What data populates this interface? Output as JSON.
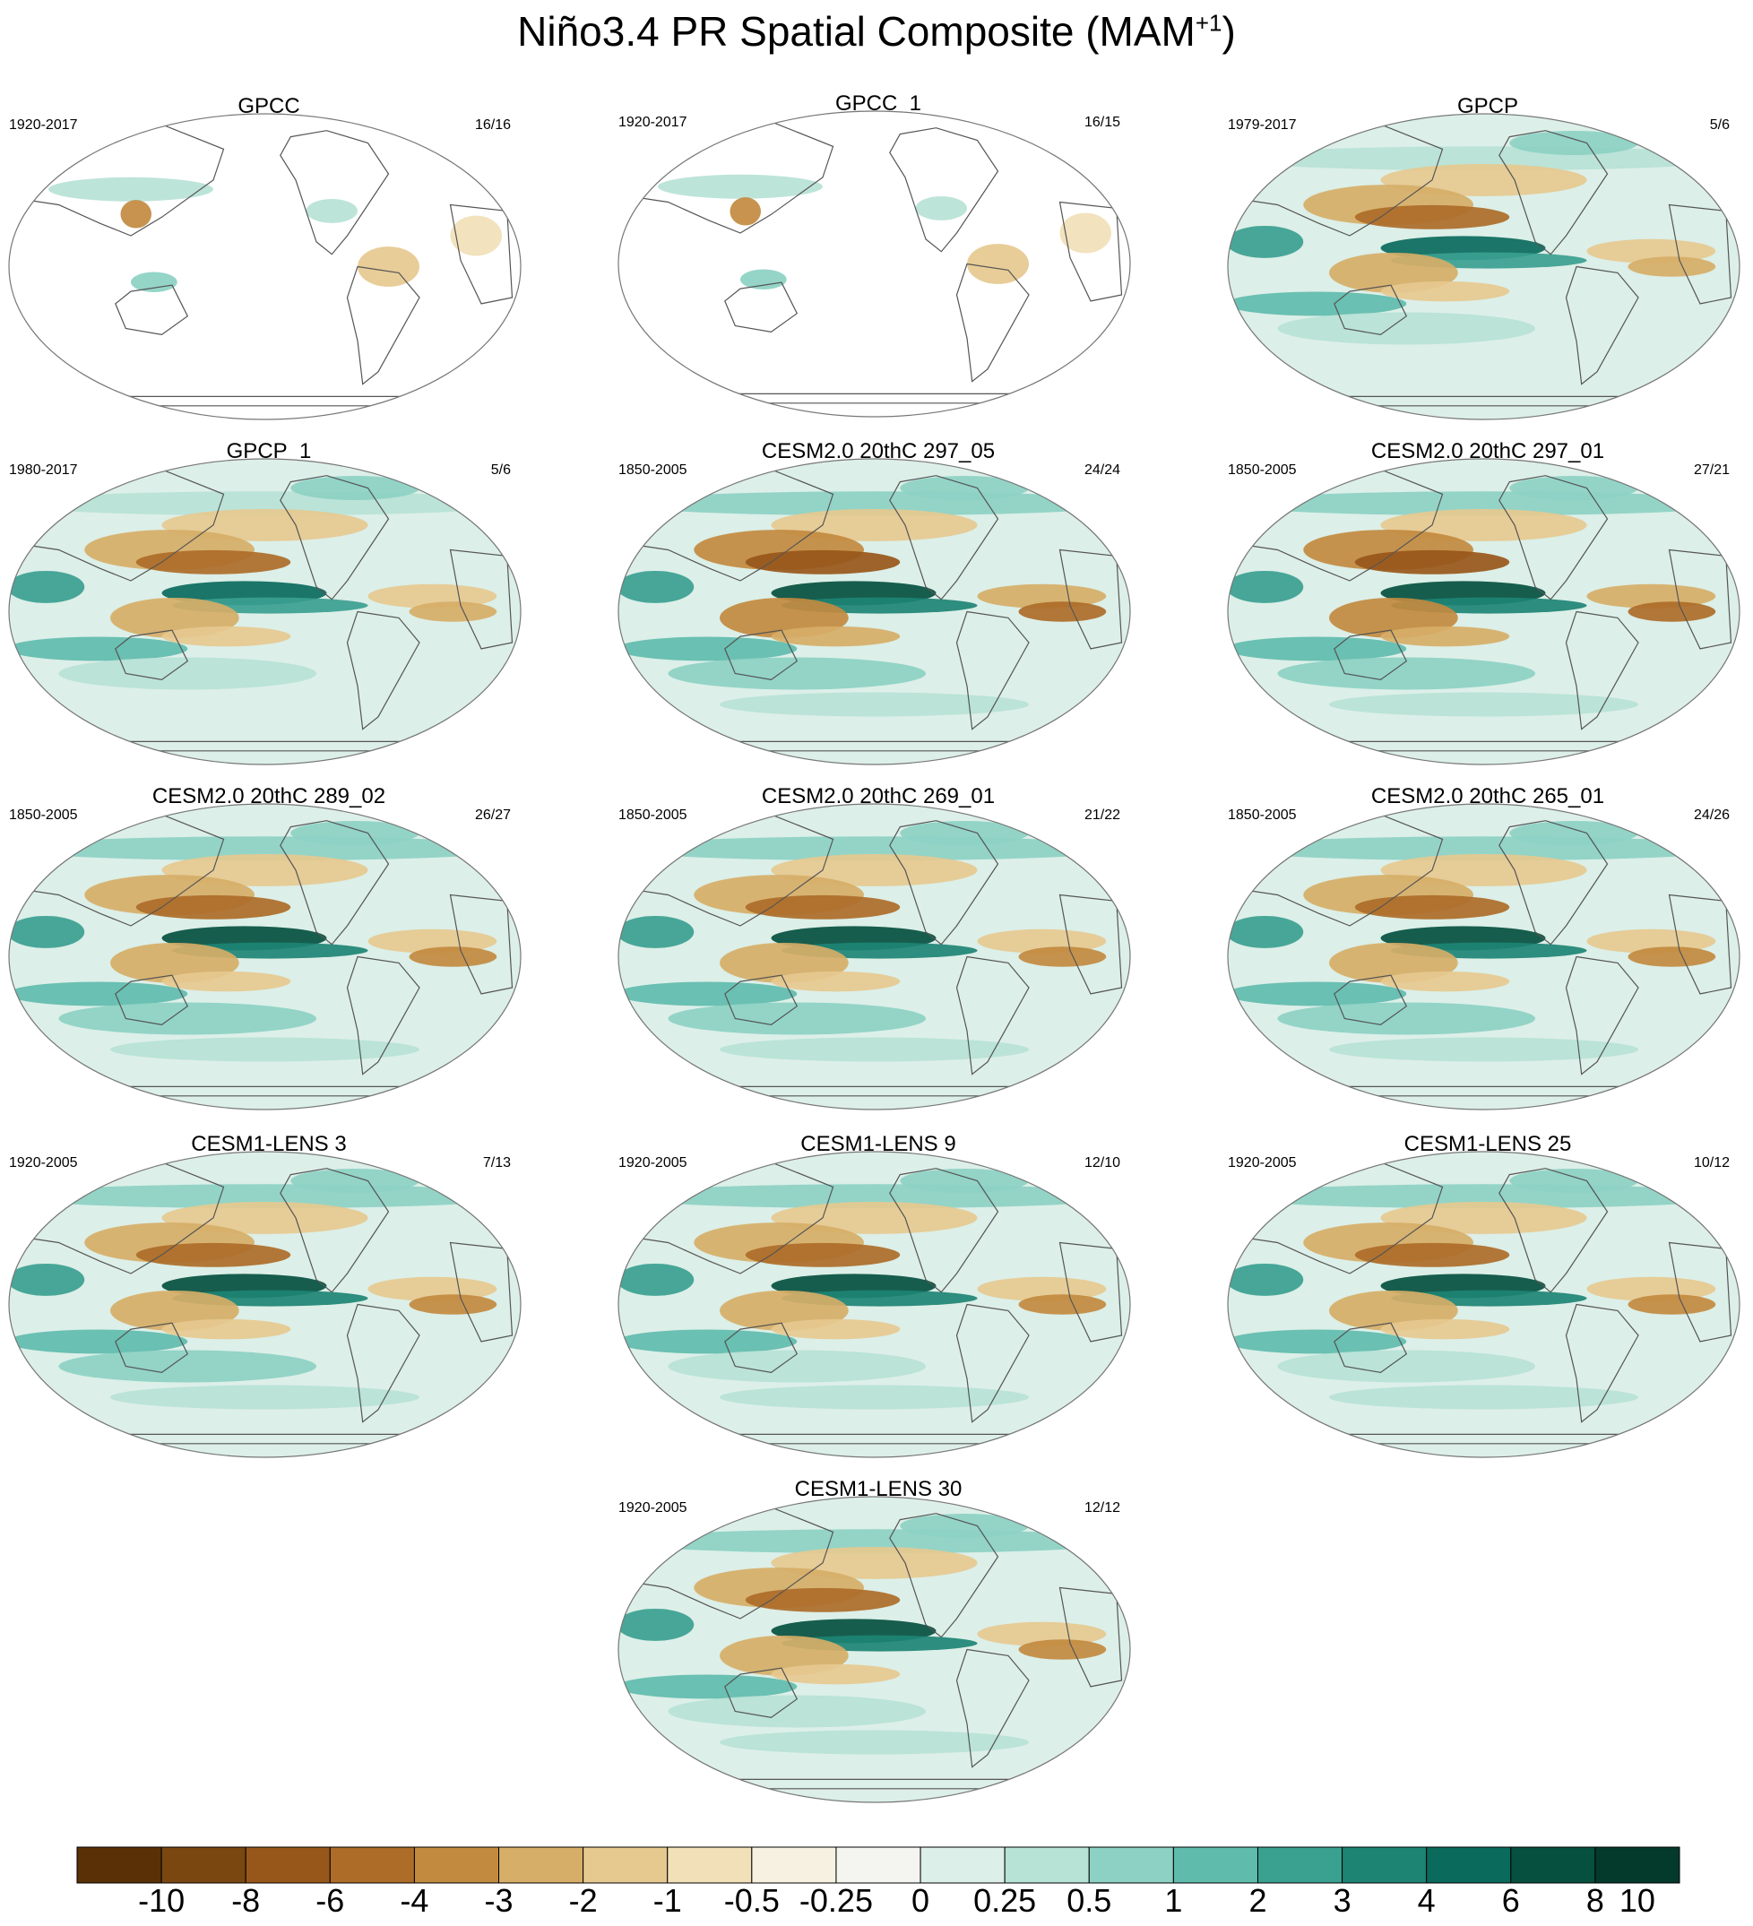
{
  "title_main": "Niño3.4 PR Spatial Composite (MAM",
  "title_sup": "+1",
  "title_close": ")",
  "colors": {
    "bins": [
      "#5a3006",
      "#7b4710",
      "#98571a",
      "#ad6c28",
      "#c28a3f",
      "#d6ae67",
      "#e6c98f",
      "#f1e0b8",
      "#f7f1e2",
      "#f4f4f0",
      "#dcefe8",
      "#b7e2d6",
      "#8cd1c3",
      "#5fbcad",
      "#3aa090",
      "#1d8474",
      "#0a6a5c",
      "#05503f",
      "#043a2c"
    ],
    "coast": "#555555",
    "border": "#777777"
  },
  "chart_data": {
    "type": "heatmap",
    "title": "Niño3.4 PR Spatial Composite (MAM+1)",
    "colorbar": {
      "labels": [
        "-10",
        "-8",
        "-6",
        "-4",
        "-3",
        "-2",
        "-1",
        "-0.5",
        "-0.25",
        "0",
        "0.25",
        "0.5",
        "1",
        "2",
        "3",
        "4",
        "6",
        "8",
        "10"
      ],
      "levels": [
        -10,
        -8,
        -6,
        -4,
        -3,
        -2,
        -1,
        -0.5,
        -0.25,
        0,
        0.25,
        0.5,
        1,
        2,
        3,
        4,
        6,
        8,
        10
      ]
    },
    "panels": [
      {
        "name": "GPCC",
        "period": "1920-2017",
        "count": "16/16",
        "land_only": true,
        "strength": 0.35
      },
      {
        "name": "GPCC_1",
        "period": "1920-2017",
        "count": "16/15",
        "land_only": true,
        "strength": 0.35
      },
      {
        "name": "GPCP",
        "period": "1979-2017",
        "count": "5/6",
        "land_only": false,
        "strength": 0.7
      },
      {
        "name": "GPCP_1",
        "period": "1980-2017",
        "count": "5/6",
        "land_only": false,
        "strength": 0.7
      },
      {
        "name": "CESM2.0 20thC 297_05",
        "period": "1850-2005",
        "count": "24/24",
        "land_only": false,
        "strength": 1.0
      },
      {
        "name": "CESM2.0 20thC 297_01",
        "period": "1850-2005",
        "count": "27/21",
        "land_only": false,
        "strength": 1.0
      },
      {
        "name": "CESM2.0 20thC 289_02",
        "period": "1850-2005",
        "count": "26/27",
        "land_only": false,
        "strength": 0.9
      },
      {
        "name": "CESM2.0 20thC 269_01",
        "period": "1850-2005",
        "count": "21/22",
        "land_only": false,
        "strength": 0.9
      },
      {
        "name": "CESM2.0 20thC 265_01",
        "period": "1850-2005",
        "count": "24/26",
        "land_only": false,
        "strength": 0.95
      },
      {
        "name": "CESM1-LENS 3",
        "period": "1920-2005",
        "count": "7/13",
        "land_only": false,
        "strength": 0.85
      },
      {
        "name": "CESM1-LENS 9",
        "period": "1920-2005",
        "count": "12/10",
        "land_only": false,
        "strength": 0.8
      },
      {
        "name": "CESM1-LENS 25",
        "period": "1920-2005",
        "count": "10/12",
        "land_only": false,
        "strength": 0.8
      },
      {
        "name": "CESM1-LENS 30",
        "period": "1920-2005",
        "count": "12/12",
        "land_only": false,
        "strength": 0.8
      }
    ]
  }
}
